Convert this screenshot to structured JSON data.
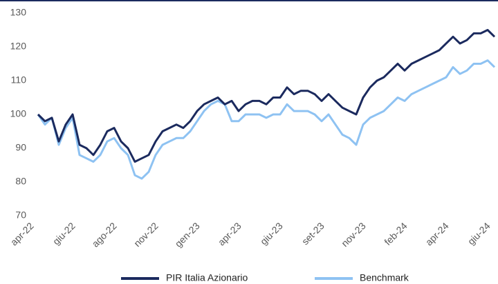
{
  "chart_data": {
    "type": "line",
    "categories": [
      "apr-22",
      null,
      null,
      null,
      null,
      null,
      "giu-22",
      null,
      null,
      null,
      null,
      null,
      "ago-22",
      null,
      null,
      null,
      null,
      null,
      "nov-22",
      null,
      null,
      null,
      null,
      null,
      "gen-23",
      null,
      null,
      null,
      null,
      null,
      "apr-23",
      null,
      null,
      null,
      null,
      null,
      "giu-23",
      null,
      null,
      null,
      null,
      null,
      "set-23",
      null,
      null,
      null,
      null,
      null,
      "nov-23",
      null,
      null,
      null,
      null,
      null,
      "feb-24",
      null,
      null,
      null,
      null,
      null,
      "apr-24",
      null,
      null,
      null,
      null,
      null,
      "giu-24"
    ],
    "series": [
      {
        "name": "PIR Italia Azionario",
        "color": "#1b2a5e",
        "values": [
          100,
          98,
          99,
          92,
          97,
          100,
          91,
          90,
          88,
          91,
          95,
          96,
          92,
          90,
          86,
          87,
          88,
          92,
          95,
          96,
          97,
          96,
          98,
          101,
          103,
          104,
          105,
          103,
          104,
          101,
          103,
          104,
          104,
          103,
          105,
          105,
          108,
          106,
          107,
          107,
          106,
          104,
          106,
          104,
          102,
          101,
          100,
          105,
          108,
          110,
          111,
          113,
          115,
          113,
          115,
          116,
          117,
          118,
          119,
          121,
          123,
          121,
          122,
          124,
          124,
          125,
          123
        ]
      },
      {
        "name": "Benchmark",
        "color": "#8ec2f2",
        "values": [
          100,
          97,
          99,
          91,
          96,
          99,
          88,
          87,
          86,
          88,
          92,
          93,
          90,
          88,
          82,
          81,
          83,
          88,
          91,
          92,
          93,
          93,
          95,
          98,
          101,
          103,
          104,
          103,
          98,
          98,
          100,
          100,
          100,
          99,
          100,
          100,
          103,
          101,
          101,
          101,
          100,
          98,
          100,
          97,
          94,
          93,
          91,
          97,
          99,
          100,
          101,
          103,
          105,
          104,
          106,
          107,
          108,
          109,
          110,
          111,
          114,
          112,
          113,
          115,
          115,
          116,
          114
        ]
      }
    ],
    "ylim": [
      70,
      130
    ],
    "yticks": [
      70,
      80,
      90,
      100,
      110,
      120,
      130
    ],
    "grid": false,
    "legend": "bottom"
  }
}
